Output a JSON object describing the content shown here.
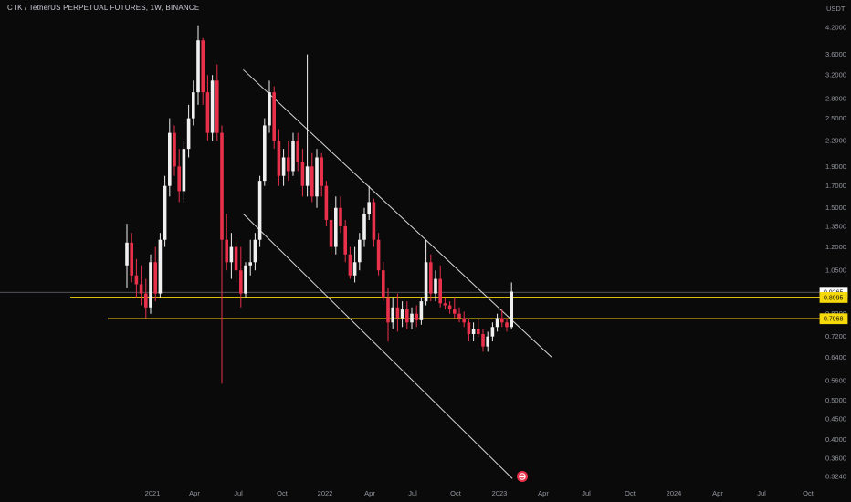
{
  "header": {
    "title": "CTK / TetherUS PERPETUAL FUTURES, 1W, BINANCE",
    "currency": "USDT"
  },
  "chart_data": {
    "type": "candlestick",
    "title": "CTK / TetherUS PERPETUAL FUTURES, 1W, BINANCE",
    "scale": "log",
    "ylim": [
      0.31,
      4.4
    ],
    "y_ticks": [
      "4.2000",
      "3.6000",
      "3.2000",
      "2.8000",
      "2.5000",
      "2.2000",
      "1.9000",
      "1.7000",
      "1.5000",
      "1.3500",
      "1.2000",
      "1.0500",
      "0.9200",
      "0.8200",
      "0.7200",
      "0.6400",
      "0.5600",
      "0.5000",
      "0.4500",
      "0.4000",
      "0.3600",
      "0.3240"
    ],
    "x_ticks": [
      "2021",
      "Apr",
      "Jul",
      "Oct",
      "2022",
      "Apr",
      "Jul",
      "Oct",
      "2023",
      "Apr",
      "Jul",
      "Oct",
      "2024",
      "Apr",
      "Jul",
      "Oct"
    ],
    "horizontal_levels": [
      {
        "label": "0.8995",
        "price": 0.8995,
        "color": "#f5d90a"
      },
      {
        "label": "0.7968",
        "price": 0.7968,
        "color": "#f5d90a"
      }
    ],
    "last_price": {
      "label": "0.9265",
      "price": 0.9265
    },
    "trend_lines": [
      {
        "from": [
          "2021-07-12",
          3.3
        ],
        "to": [
          "2023-04-20",
          0.64
        ]
      },
      {
        "from": [
          "2021-07-12",
          1.45
        ],
        "to": [
          "2023-01-28",
          0.32
        ]
      }
    ],
    "candles": [
      [
        1.08,
        1.37,
        0.95,
        1.23
      ],
      [
        1.23,
        1.3,
        0.98,
        1.02
      ],
      [
        1.02,
        1.12,
        0.9,
        0.97
      ],
      [
        0.97,
        1.08,
        0.86,
        0.92
      ],
      [
        0.92,
        1.0,
        0.8,
        0.85
      ],
      [
        0.85,
        1.15,
        0.82,
        1.1
      ],
      [
        1.1,
        1.2,
        0.88,
        0.92
      ],
      [
        0.92,
        1.3,
        0.9,
        1.25
      ],
      [
        1.25,
        1.8,
        1.2,
        1.7
      ],
      [
        1.7,
        2.5,
        1.6,
        2.3
      ],
      [
        2.3,
        2.4,
        1.8,
        1.9
      ],
      [
        1.9,
        2.1,
        1.55,
        1.65
      ],
      [
        1.65,
        2.2,
        1.55,
        2.1
      ],
      [
        2.1,
        2.7,
        2.0,
        2.5
      ],
      [
        2.5,
        3.1,
        2.4,
        2.9
      ],
      [
        2.9,
        4.25,
        2.7,
        3.9
      ],
      [
        3.9,
        3.95,
        2.7,
        2.9
      ],
      [
        2.9,
        3.2,
        2.2,
        2.3
      ],
      [
        2.3,
        3.2,
        2.2,
        3.1
      ],
      [
        3.1,
        3.4,
        2.2,
        2.3
      ],
      [
        2.3,
        2.4,
        0.55,
        1.25
      ],
      [
        1.25,
        1.45,
        1.05,
        1.1
      ],
      [
        1.1,
        1.3,
        1.0,
        1.2
      ],
      [
        1.2,
        1.25,
        0.98,
        1.05
      ],
      [
        1.05,
        1.2,
        0.85,
        0.92
      ],
      [
        0.92,
        1.1,
        0.9,
        1.08
      ],
      [
        1.08,
        1.25,
        1.02,
        1.1
      ],
      [
        1.1,
        1.3,
        1.05,
        1.25
      ],
      [
        1.25,
        1.8,
        1.2,
        1.75
      ],
      [
        1.75,
        2.5,
        1.7,
        2.4
      ],
      [
        2.4,
        3.1,
        2.3,
        2.9
      ],
      [
        2.9,
        3.0,
        2.1,
        2.2
      ],
      [
        2.2,
        2.35,
        1.7,
        1.8
      ],
      [
        1.8,
        2.1,
        1.7,
        2.0
      ],
      [
        2.0,
        2.2,
        1.75,
        1.85
      ],
      [
        1.85,
        2.3,
        1.8,
        2.2
      ],
      [
        2.2,
        2.3,
        1.85,
        1.95
      ],
      [
        1.95,
        2.1,
        1.6,
        1.7
      ],
      [
        1.7,
        3.6,
        1.6,
        1.9
      ],
      [
        1.9,
        2.05,
        1.55,
        1.6
      ],
      [
        1.6,
        2.1,
        1.5,
        2.0
      ],
      [
        2.0,
        2.05,
        1.6,
        1.7
      ],
      [
        1.7,
        1.75,
        1.35,
        1.4
      ],
      [
        1.4,
        1.5,
        1.15,
        1.2
      ],
      [
        1.2,
        1.6,
        1.15,
        1.5
      ],
      [
        1.5,
        1.6,
        1.3,
        1.35
      ],
      [
        1.35,
        1.4,
        1.1,
        1.15
      ],
      [
        1.15,
        1.2,
        1.0,
        1.02
      ],
      [
        1.02,
        1.2,
        0.98,
        1.1
      ],
      [
        1.1,
        1.3,
        1.05,
        1.25
      ],
      [
        1.25,
        1.5,
        1.2,
        1.45
      ],
      [
        1.45,
        1.7,
        1.4,
        1.55
      ],
      [
        1.55,
        1.58,
        1.2,
        1.25
      ],
      [
        1.25,
        1.3,
        1.02,
        1.05
      ],
      [
        1.05,
        1.1,
        0.88,
        0.9
      ],
      [
        0.9,
        0.95,
        0.7,
        0.78
      ],
      [
        0.78,
        0.9,
        0.75,
        0.85
      ],
      [
        0.85,
        0.92,
        0.74,
        0.8
      ],
      [
        0.8,
        0.88,
        0.76,
        0.84
      ],
      [
        0.84,
        0.88,
        0.75,
        0.78
      ],
      [
        0.78,
        0.85,
        0.75,
        0.82
      ],
      [
        0.82,
        0.86,
        0.76,
        0.79
      ],
      [
        0.79,
        0.9,
        0.77,
        0.88
      ],
      [
        0.88,
        1.25,
        0.86,
        1.1
      ],
      [
        1.1,
        1.15,
        0.88,
        0.92
      ],
      [
        0.92,
        1.05,
        0.88,
        1.0
      ],
      [
        1.0,
        1.08,
        0.85,
        0.87
      ],
      [
        0.87,
        0.9,
        0.84,
        0.86
      ],
      [
        0.86,
        0.88,
        0.82,
        0.84
      ],
      [
        0.84,
        0.9,
        0.8,
        0.82
      ],
      [
        0.82,
        0.85,
        0.78,
        0.8
      ],
      [
        0.8,
        0.83,
        0.76,
        0.78
      ],
      [
        0.78,
        0.8,
        0.7,
        0.73
      ],
      [
        0.73,
        0.78,
        0.7,
        0.75
      ],
      [
        0.75,
        0.8,
        0.72,
        0.73
      ],
      [
        0.73,
        0.75,
        0.66,
        0.68
      ],
      [
        0.68,
        0.74,
        0.66,
        0.72
      ],
      [
        0.72,
        0.78,
        0.7,
        0.76
      ],
      [
        0.76,
        0.82,
        0.74,
        0.8
      ],
      [
        0.8,
        0.84,
        0.76,
        0.78
      ],
      [
        0.78,
        0.8,
        0.74,
        0.76
      ],
      [
        0.76,
        0.98,
        0.75,
        0.93
      ]
    ]
  }
}
